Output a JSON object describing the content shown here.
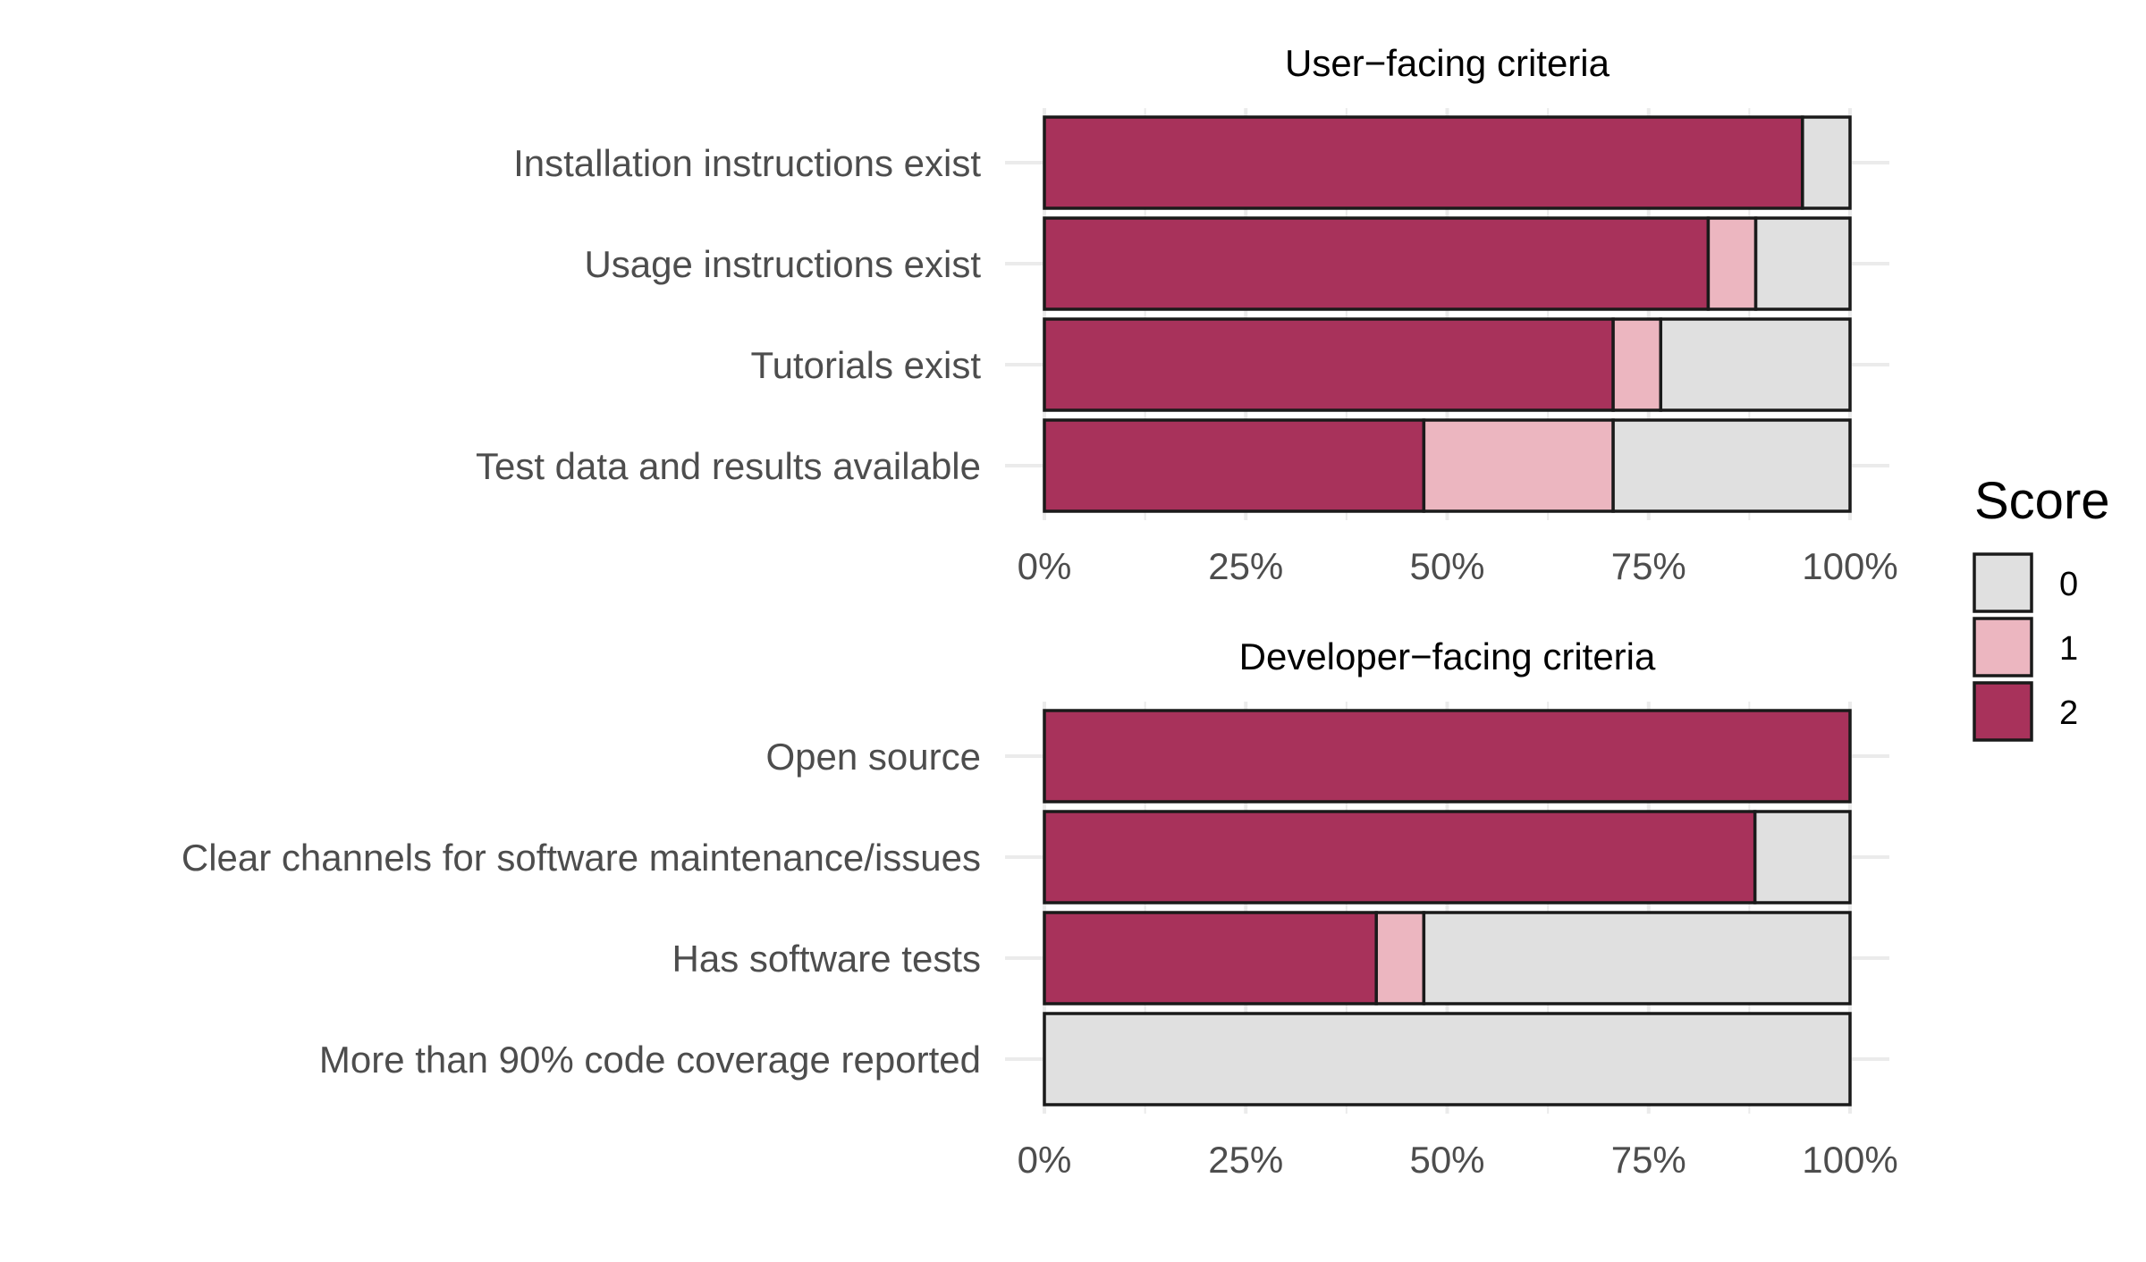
{
  "legend": {
    "title": "Score",
    "entries": [
      {
        "label": "0",
        "color": "#e0e0e0"
      },
      {
        "label": "1",
        "color": "#ecb6c0"
      },
      {
        "label": "2",
        "color": "#a8325b"
      }
    ]
  },
  "chart_data": [
    {
      "type": "bar",
      "orientation": "horizontal",
      "stacked": true,
      "title": "User−facing criteria",
      "xlabel": "",
      "ylabel": "",
      "xlim": [
        0,
        100
      ],
      "x_ticks": [
        "0%",
        "25%",
        "50%",
        "75%",
        "100%"
      ],
      "grid": true,
      "categories": [
        "Installation instructions exist",
        "Usage instructions exist",
        "Tutorials exist",
        "Test data and results available"
      ],
      "series": [
        {
          "name": "2",
          "color": "#a8325b",
          "values": [
            94.1,
            82.4,
            70.6,
            47.1
          ]
        },
        {
          "name": "1",
          "color": "#ecb6c0",
          "values": [
            0,
            5.9,
            5.9,
            23.5
          ]
        },
        {
          "name": "0",
          "color": "#e0e0e0",
          "values": [
            5.9,
            11.7,
            23.5,
            29.4
          ]
        }
      ]
    },
    {
      "type": "bar",
      "orientation": "horizontal",
      "stacked": true,
      "title": "Developer−facing criteria",
      "xlabel": "",
      "ylabel": "",
      "xlim": [
        0,
        100
      ],
      "x_ticks": [
        "0%",
        "25%",
        "50%",
        "75%",
        "100%"
      ],
      "grid": true,
      "categories": [
        "Open source",
        "Clear channels for software maintenance/issues",
        "Has software tests",
        "More than 90% code coverage reported"
      ],
      "series": [
        {
          "name": "2",
          "color": "#a8325b",
          "values": [
            100,
            88.2,
            41.2,
            0
          ]
        },
        {
          "name": "1",
          "color": "#ecb6c0",
          "values": [
            0,
            0,
            5.9,
            0
          ]
        },
        {
          "name": "0",
          "color": "#e0e0e0",
          "values": [
            0,
            11.8,
            52.9,
            100
          ]
        }
      ]
    }
  ]
}
